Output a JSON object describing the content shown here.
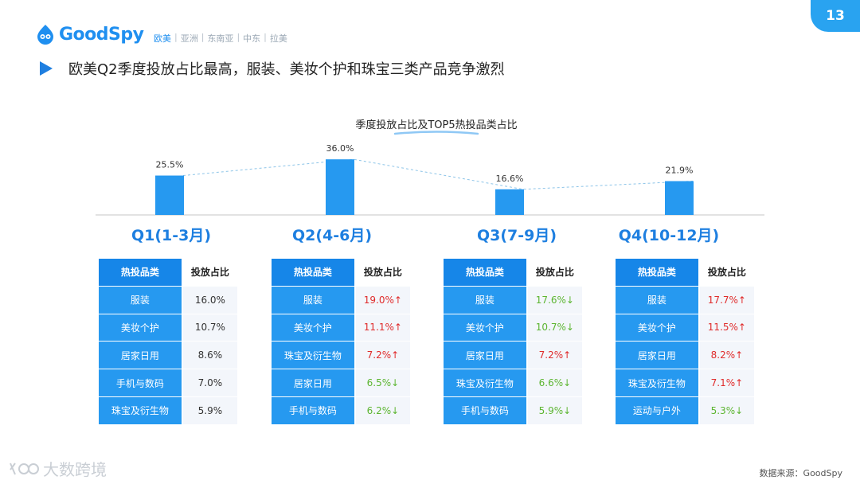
{
  "page_number": "13",
  "brand": {
    "name": "GoodSpy",
    "color": "#1f8ff0"
  },
  "regions": [
    "欧美",
    "亚洲",
    "东南亚",
    "中东",
    "拉美"
  ],
  "active_region": "欧美",
  "headline": "欧美Q2季度投放占比最高，服装、美妆个护和珠宝三类产品竞争激烈",
  "source": "数据来源：GoodSpy",
  "watermark": "大数跨境",
  "chart_data": {
    "type": "bar",
    "title": "季度投放占比及TOP5热投品类占比",
    "categories": [
      "Q1(1-3月)",
      "Q2(4-6月)",
      "Q3(7-9月)",
      "Q4(10-12月)"
    ],
    "values": [
      25.5,
      36.0,
      16.6,
      21.9
    ],
    "value_labels": [
      "25.5%",
      "36.0%",
      "16.6%",
      "21.9%"
    ],
    "unit": "%",
    "trend_line": "dashed",
    "bar_color": "#2699f0",
    "tables": [
      {
        "header": [
          "热投品类",
          "投放占比"
        ],
        "rows": [
          {
            "category": "服装",
            "value": "16.0%",
            "trend": ""
          },
          {
            "category": "美妆个护",
            "value": "10.7%",
            "trend": ""
          },
          {
            "category": "居家日用",
            "value": "8.6%",
            "trend": ""
          },
          {
            "category": "手机与数码",
            "value": "7.0%",
            "trend": ""
          },
          {
            "category": "珠宝及衍生物",
            "value": "5.9%",
            "trend": ""
          }
        ]
      },
      {
        "header": [
          "热投品类",
          "投放占比"
        ],
        "rows": [
          {
            "category": "服装",
            "value": "19.0%",
            "trend": "up"
          },
          {
            "category": "美妆个护",
            "value": "11.1%",
            "trend": "up"
          },
          {
            "category": "珠宝及衍生物",
            "value": "7.2%",
            "trend": "up"
          },
          {
            "category": "居家日用",
            "value": "6.5%",
            "trend": "down"
          },
          {
            "category": "手机与数码",
            "value": "6.2%",
            "trend": "down"
          }
        ]
      },
      {
        "header": [
          "热投品类",
          "投放占比"
        ],
        "rows": [
          {
            "category": "服装",
            "value": "17.6%",
            "trend": "down"
          },
          {
            "category": "美妆个护",
            "value": "10.7%",
            "trend": "down"
          },
          {
            "category": "居家日用",
            "value": "7.2%",
            "trend": "up"
          },
          {
            "category": "珠宝及衍生物",
            "value": "6.6%",
            "trend": "down"
          },
          {
            "category": "手机与数码",
            "value": "5.9%",
            "trend": "down"
          }
        ]
      },
      {
        "header": [
          "热投品类",
          "投放占比"
        ],
        "rows": [
          {
            "category": "服装",
            "value": "17.7%",
            "trend": "up"
          },
          {
            "category": "美妆个护",
            "value": "11.5%",
            "trend": "up"
          },
          {
            "category": "居家日用",
            "value": "8.2%",
            "trend": "up"
          },
          {
            "category": "珠宝及衍生物",
            "value": "7.1%",
            "trend": "up"
          },
          {
            "category": "运动与户外",
            "value": "5.3%",
            "trend": "down"
          }
        ]
      }
    ]
  }
}
